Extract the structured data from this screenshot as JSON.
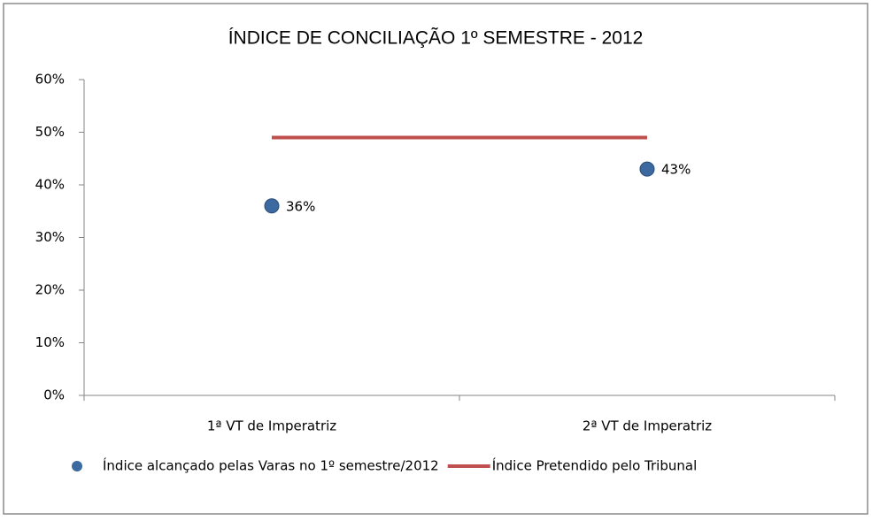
{
  "chart_data": {
    "type": "combo",
    "title": "ÍNDICE DE CONCILIAÇÃO 1º SEMESTRE - 2012",
    "categories": [
      "1ª VT de Imperatriz",
      "2ª VT de Imperatriz"
    ],
    "series": [
      {
        "name": "Índice alcançado pelas Varas no 1º semestre/2012",
        "type": "scatter",
        "color": "#3c6aa0",
        "values": [
          36,
          43
        ],
        "value_labels": [
          "36%",
          "43%"
        ]
      },
      {
        "name": "Índice Pretendido pelo Tribunal",
        "type": "line",
        "color": "#c0504d",
        "values": [
          49,
          49
        ]
      }
    ],
    "ylim": [
      0,
      60
    ],
    "yticks": [
      {
        "value": 0,
        "label": "0%"
      },
      {
        "value": 10,
        "label": "10%"
      },
      {
        "value": 20,
        "label": "20%"
      },
      {
        "value": 30,
        "label": "30%"
      },
      {
        "value": 40,
        "label": "40%"
      },
      {
        "value": 50,
        "label": "50%"
      },
      {
        "value": 60,
        "label": "60%"
      }
    ],
    "grid": false,
    "legend": "bottom"
  }
}
